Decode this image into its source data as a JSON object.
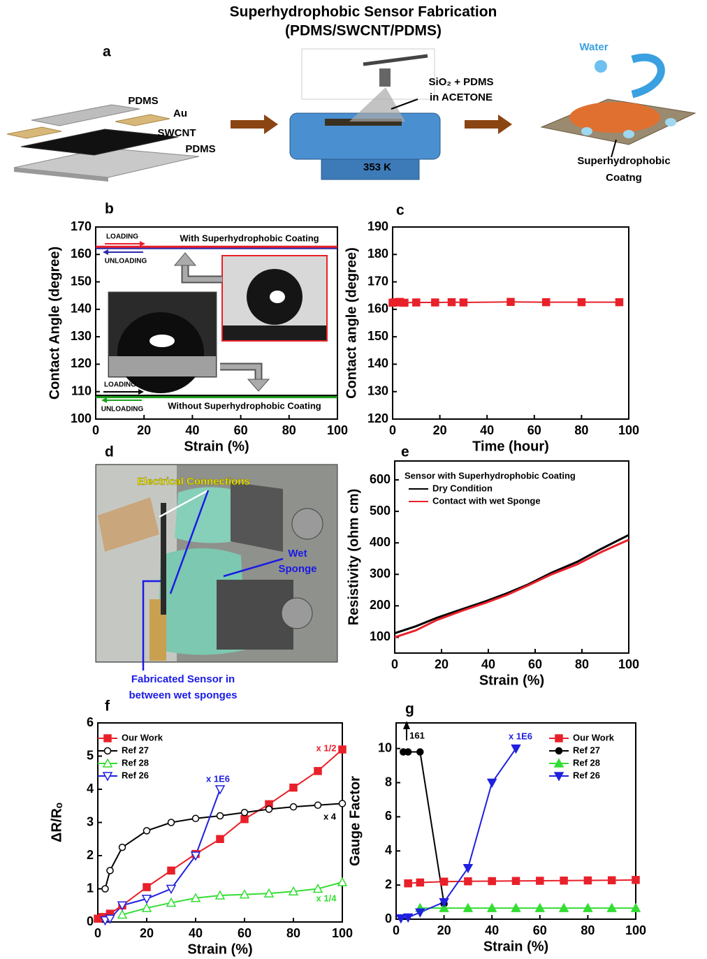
{
  "title": "Superhydrophobic Sensor Fabrication",
  "subtitle": "(PDMS/SWCNT/PDMS)",
  "panel_a": {
    "label": "a",
    "layer_labels": [
      "PDMS",
      "Au",
      "SWCNT",
      "PDMS"
    ],
    "spray_label": [
      "SiO₂ + PDMS",
      "in ACETONE"
    ],
    "temperature": "353 K",
    "water": "Water",
    "coating_label": [
      "Superhydrophobic",
      "Coatng"
    ]
  },
  "panel_d": {
    "label": "d",
    "connections": "Electrical Connections",
    "sponge": [
      "Wet",
      "Sponge"
    ],
    "sensor": [
      "Fabricated Sensor in",
      "between wet sponges"
    ]
  },
  "chart_data": [
    {
      "type": "line",
      "label": "b",
      "xlabel": "Strain (%)",
      "ylabel": "Contact Angle (degree)",
      "xlim": [
        0,
        100
      ],
      "ylim": [
        100,
        170
      ],
      "xticks": [
        0,
        20,
        40,
        60,
        80,
        100
      ],
      "yticks": [
        100,
        110,
        120,
        130,
        140,
        150,
        160,
        170
      ],
      "series": [
        {
          "color": "#2b2ba8",
          "marker": "none",
          "x": [
            0,
            100
          ],
          "values": [
            162.3,
            162.3
          ]
        },
        {
          "color": "#e8202a",
          "marker": "none",
          "x": [
            0,
            100
          ],
          "values": [
            162.8,
            162.8
          ]
        },
        {
          "color": "#000000",
          "marker": "none",
          "x": [
            0,
            100
          ],
          "values": [
            108.5,
            108.5
          ]
        },
        {
          "color": "#1aa01a",
          "marker": "none",
          "x": [
            0,
            100
          ],
          "values": [
            108,
            108
          ]
        }
      ],
      "annotations": [
        {
          "text": "LOADING",
          "color": "#000000"
        },
        {
          "text": "UNLOADING",
          "color": "#000000"
        },
        {
          "text": "With Superhydrophobic Coating",
          "color": "#000000"
        },
        {
          "text": "LOADING",
          "color": "#000000"
        },
        {
          "text": "UNLOADING",
          "color": "#000000"
        },
        {
          "text": "Without Superhydrophobic Coating",
          "color": "#000000"
        }
      ]
    },
    {
      "type": "line",
      "label": "c",
      "xlabel": "Time (hour)",
      "ylabel": "Contact angle (degree)",
      "xlim": [
        0,
        100
      ],
      "ylim": [
        120,
        190
      ],
      "xticks": [
        0,
        20,
        40,
        60,
        80,
        100
      ],
      "yticks": [
        120,
        130,
        140,
        150,
        160,
        170,
        180,
        190
      ],
      "series": [
        {
          "color": "#e8202a",
          "marker": "square",
          "x": [
            0,
            1,
            2,
            3,
            5,
            10,
            18,
            25,
            30,
            50,
            65,
            80,
            96
          ],
          "values": [
            162.4,
            162.6,
            162.5,
            162.7,
            162.4,
            162.5,
            162.5,
            162.6,
            162.5,
            162.7,
            162.6,
            162.6,
            162.6
          ]
        }
      ]
    },
    {
      "type": "line",
      "label": "e",
      "xlabel": "Strain (%)",
      "ylabel": "Resistivity (ohm cm)",
      "xlim": [
        0,
        100
      ],
      "ylim": [
        50,
        660
      ],
      "xticks": [
        0,
        20,
        40,
        60,
        80,
        100
      ],
      "yticks": [
        100,
        200,
        300,
        400,
        500,
        600
      ],
      "legend": "upper left",
      "legend_title": "Sensor with Superhydrophobic Coating",
      "series": [
        {
          "name": "Dry Condition",
          "color": "#000000",
          "marker": "none",
          "x": [
            0,
            9,
            18,
            29,
            39,
            48,
            57,
            67,
            78,
            88,
            100
          ],
          "values": [
            113,
            135,
            162,
            190,
            215,
            240,
            268,
            305,
            340,
            380,
            425
          ]
        },
        {
          "name": "Contact with wet Sponge",
          "color": "#e8202a",
          "marker": "none",
          "x": [
            0,
            9,
            18,
            29,
            39,
            48,
            57,
            67,
            78,
            88,
            100
          ],
          "values": [
            100,
            122,
            155,
            185,
            210,
            235,
            265,
            300,
            332,
            370,
            410
          ]
        }
      ]
    },
    {
      "type": "line",
      "label": "f",
      "xlabel": "Strain (%)",
      "ylabel": "ΔR/Rₒ",
      "xlim": [
        0,
        100
      ],
      "ylim": [
        0,
        6
      ],
      "xticks": [
        0,
        20,
        40,
        60,
        80,
        100
      ],
      "yticks": [
        0,
        1,
        2,
        3,
        4,
        5,
        6
      ],
      "legend": "upper left",
      "series": [
        {
          "name": "Our Work",
          "color": "#e8202a",
          "marker": "square",
          "x": [
            0,
            2,
            5,
            10,
            20,
            30,
            40,
            50,
            60,
            70,
            80,
            90,
            100
          ],
          "values": [
            0.1,
            0.15,
            0.25,
            0.5,
            1.05,
            1.55,
            2.05,
            2.5,
            3.1,
            3.55,
            4.05,
            4.55,
            5.2
          ]
        },
        {
          "name": "Ref 27",
          "color": "#000000",
          "marker": "circle-open",
          "x": [
            3,
            5,
            10,
            20,
            30,
            40,
            50,
            60,
            70,
            80,
            90,
            100
          ],
          "values": [
            1.0,
            1.55,
            2.25,
            2.75,
            3.0,
            3.12,
            3.2,
            3.3,
            3.4,
            3.47,
            3.52,
            3.57
          ]
        },
        {
          "name": "Ref 28",
          "color": "#33dd33",
          "marker": "triangle-open",
          "x": [
            10,
            20,
            30,
            40,
            50,
            60,
            70,
            80,
            90,
            100
          ],
          "values": [
            0.22,
            0.42,
            0.58,
            0.72,
            0.8,
            0.83,
            0.86,
            0.92,
            1.0,
            1.2
          ]
        },
        {
          "name": "Ref 26",
          "color": "#2020e0",
          "marker": "triangle-down-open",
          "x": [
            3,
            5,
            10,
            20,
            30,
            40,
            50
          ],
          "values": [
            0.05,
            0.1,
            0.5,
            0.7,
            1.0,
            2.0,
            4.0
          ]
        }
      ],
      "annotations": [
        {
          "text": "x 1/2",
          "color": "#e8202a"
        },
        {
          "text": "x 4",
          "color": "#000000"
        },
        {
          "text": "x 1/4",
          "color": "#33dd33"
        },
        {
          "text": "x 1E6",
          "color": "#2020e0"
        }
      ]
    },
    {
      "type": "line",
      "label": "g",
      "xlabel": "Strain (%)",
      "ylabel": "Gauge Factor",
      "xlim": [
        0,
        100
      ],
      "ylim": [
        0,
        11.5
      ],
      "xticks": [
        0,
        20,
        40,
        60,
        80,
        100
      ],
      "yticks": [
        0,
        2,
        4,
        6,
        8,
        10
      ],
      "legend": "upper right",
      "series": [
        {
          "name": "Our Work",
          "color": "#e8202a",
          "marker": "square",
          "x": [
            5,
            10,
            20,
            30,
            40,
            50,
            60,
            70,
            80,
            90,
            100
          ],
          "values": [
            2.1,
            2.15,
            2.2,
            2.22,
            2.23,
            2.24,
            2.25,
            2.26,
            2.27,
            2.28,
            2.3
          ]
        },
        {
          "name": "Ref 27",
          "color": "#000000",
          "marker": "circle",
          "x": [
            3,
            5,
            10,
            20
          ],
          "values": [
            9.8,
            9.8,
            9.8,
            0.9
          ]
        },
        {
          "name": "Ref 28",
          "color": "#33dd33",
          "marker": "triangle",
          "x": [
            10,
            20,
            30,
            40,
            50,
            60,
            70,
            80,
            90,
            100
          ],
          "values": [
            0.65,
            0.65,
            0.65,
            0.65,
            0.65,
            0.65,
            0.65,
            0.65,
            0.65,
            0.65
          ]
        },
        {
          "name": "Ref 26",
          "color": "#2020e0",
          "marker": "triangle-down",
          "x": [
            2,
            5,
            10,
            20,
            30,
            40,
            50
          ],
          "values": [
            0.05,
            0.1,
            0.4,
            1.0,
            3.0,
            8.0,
            10.0
          ]
        }
      ],
      "annotations": [
        {
          "text": "161",
          "color": "#000000"
        },
        {
          "text": "x 1E6",
          "color": "#2020e0"
        }
      ]
    }
  ]
}
